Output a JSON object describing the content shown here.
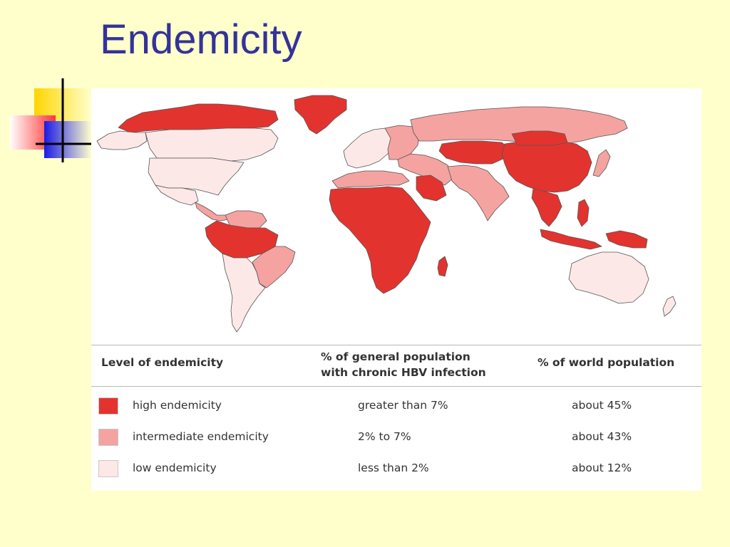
{
  "slide": {
    "title": "Endemicity",
    "title_color": "#333399",
    "background": "#FFFFCC"
  },
  "colors": {
    "high": "#E3332F",
    "intermediate": "#F4A3A1",
    "low": "#FCE8E7",
    "water": "#ffffff"
  },
  "legend": {
    "headers": {
      "level": "Level of endemicity",
      "hbv_line1": "% of general population",
      "hbv_line2": "with chronic HBV infection",
      "world": "% of world population"
    },
    "rows": [
      {
        "category": "high",
        "label": "high endemicity",
        "hbv": "greater than 7%",
        "world": "about 45%"
      },
      {
        "category": "intermediate",
        "label": "intermediate endemicity",
        "hbv": "2% to 7%",
        "world": "about 43%"
      },
      {
        "category": "low",
        "label": "low endemicity",
        "hbv": "less than 2%",
        "world": "about 12%"
      }
    ]
  },
  "map_regions": [
    {
      "name": "canada-arctic",
      "category": "high"
    },
    {
      "name": "greenland",
      "category": "high"
    },
    {
      "name": "alaska",
      "category": "low"
    },
    {
      "name": "canada",
      "category": "low"
    },
    {
      "name": "united-states",
      "category": "low"
    },
    {
      "name": "mexico",
      "category": "low"
    },
    {
      "name": "central-america",
      "category": "intermediate"
    },
    {
      "name": "colombia-venezuela",
      "category": "intermediate"
    },
    {
      "name": "amazon-basin",
      "category": "high"
    },
    {
      "name": "brazil-east",
      "category": "intermediate"
    },
    {
      "name": "southern-south-america",
      "category": "low"
    },
    {
      "name": "western-europe",
      "category": "low"
    },
    {
      "name": "eastern-europe",
      "category": "intermediate"
    },
    {
      "name": "russia",
      "category": "intermediate"
    },
    {
      "name": "central-asia",
      "category": "high"
    },
    {
      "name": "north-africa",
      "category": "intermediate"
    },
    {
      "name": "middle-east",
      "category": "intermediate"
    },
    {
      "name": "saudi-arabia",
      "category": "high"
    },
    {
      "name": "sub-saharan-africa",
      "category": "high"
    },
    {
      "name": "madagascar",
      "category": "high"
    },
    {
      "name": "south-asia",
      "category": "intermediate"
    },
    {
      "name": "china",
      "category": "high"
    },
    {
      "name": "mongolia",
      "category": "high"
    },
    {
      "name": "japan",
      "category": "intermediate"
    },
    {
      "name": "southeast-asia",
      "category": "high"
    },
    {
      "name": "indonesia",
      "category": "high"
    },
    {
      "name": "philippines",
      "category": "high"
    },
    {
      "name": "new-guinea",
      "category": "high"
    },
    {
      "name": "australia",
      "category": "low"
    },
    {
      "name": "new-zealand",
      "category": "low"
    }
  ]
}
